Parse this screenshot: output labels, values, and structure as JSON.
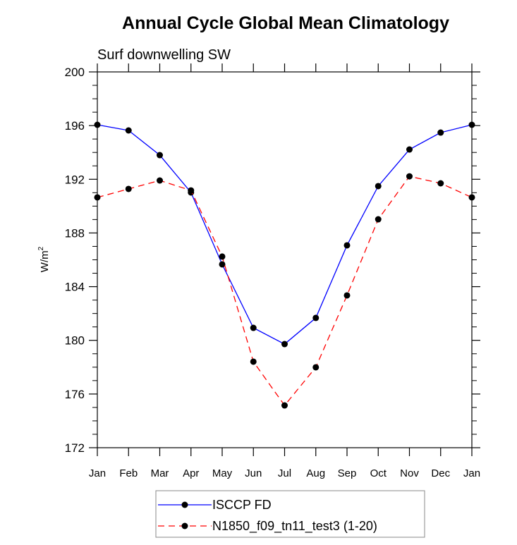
{
  "chart_data": {
    "type": "line",
    "title": "Annual Cycle Global Mean Climatology",
    "subtitle": "Surf downwelling SW",
    "xlabel": "",
    "ylabel": "W/m",
    "ylabel_superscript": "2",
    "ylim": [
      172,
      200
    ],
    "yticks": [
      172,
      176,
      180,
      184,
      188,
      192,
      196,
      200
    ],
    "ytick_labels": [
      "172",
      "176",
      "180",
      "184",
      "188",
      "192",
      "196",
      "200"
    ],
    "y_minor_step": 1,
    "categories": [
      "Jan",
      "Feb",
      "Mar",
      "Apr",
      "May",
      "Jun",
      "Jul",
      "Aug",
      "Sep",
      "Oct",
      "Nov",
      "Dec",
      "Jan"
    ],
    "grid": false,
    "legend_position": "bottom-center",
    "series": [
      {
        "name": "ISCCP FD",
        "color": "#0000ff",
        "line_style": "solid",
        "marker": "filled-circle",
        "values": [
          196.06,
          195.64,
          193.8,
          191.02,
          185.66,
          180.93,
          179.72,
          181.67,
          187.08,
          191.49,
          194.22,
          195.48,
          196.06
        ]
      },
      {
        "name": "N1850_f09_tn11_test3 (1-20)",
        "color": "#ff0000",
        "line_style": "dashed",
        "marker": "filled-circle",
        "values": [
          190.65,
          191.28,
          191.91,
          191.17,
          186.24,
          178.41,
          175.15,
          177.99,
          183.35,
          189.02,
          192.22,
          191.7,
          190.65
        ]
      }
    ]
  }
}
